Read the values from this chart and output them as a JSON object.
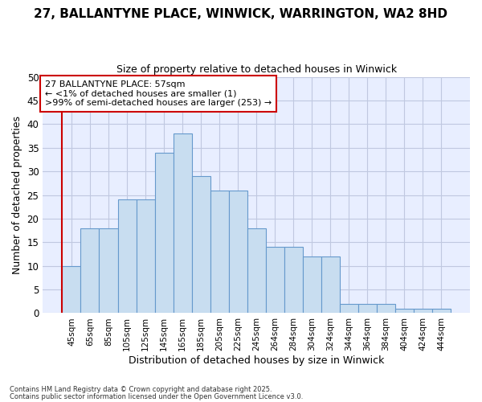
{
  "title1": "27, BALLANTYNE PLACE, WINWICK, WARRINGTON, WA2 8HD",
  "title2": "Size of property relative to detached houses in Winwick",
  "xlabel": "Distribution of detached houses by size in Winwick",
  "ylabel": "Number of detached properties",
  "categories": [
    "45sqm",
    "65sqm",
    "85sqm",
    "105sqm",
    "125sqm",
    "145sqm",
    "165sqm",
    "185sqm",
    "205sqm",
    "225sqm",
    "245sqm",
    "264sqm",
    "284sqm",
    "304sqm",
    "324sqm",
    "344sqm",
    "364sqm",
    "384sqm",
    "404sqm",
    "424sqm",
    "444sqm"
  ],
  "values": [
    10,
    18,
    18,
    24,
    24,
    34,
    38,
    29,
    26,
    26,
    18,
    14,
    14,
    12,
    12,
    2,
    2,
    2,
    1,
    1,
    1
  ],
  "bar_color": "#c8ddf0",
  "bar_edge_color": "#6699cc",
  "ylim": [
    0,
    50
  ],
  "yticks": [
    0,
    5,
    10,
    15,
    20,
    25,
    30,
    35,
    40,
    45,
    50
  ],
  "annotation_box_text": "27 BALLANTYNE PLACE: 57sqm\n← <1% of detached houses are smaller (1)\n>99% of semi-detached houses are larger (253) →",
  "annotation_box_color": "#cc0000",
  "annotation_box_fill": "#ffffff",
  "bg_color": "#ffffff",
  "plot_bg_color": "#e8eeff",
  "grid_color": "#c0c8e0",
  "footer1": "Contains HM Land Registry data © Crown copyright and database right 2025.",
  "footer2": "Contains public sector information licensed under the Open Government Licence v3.0.",
  "title_fontsize": 11,
  "subtitle_fontsize": 9
}
